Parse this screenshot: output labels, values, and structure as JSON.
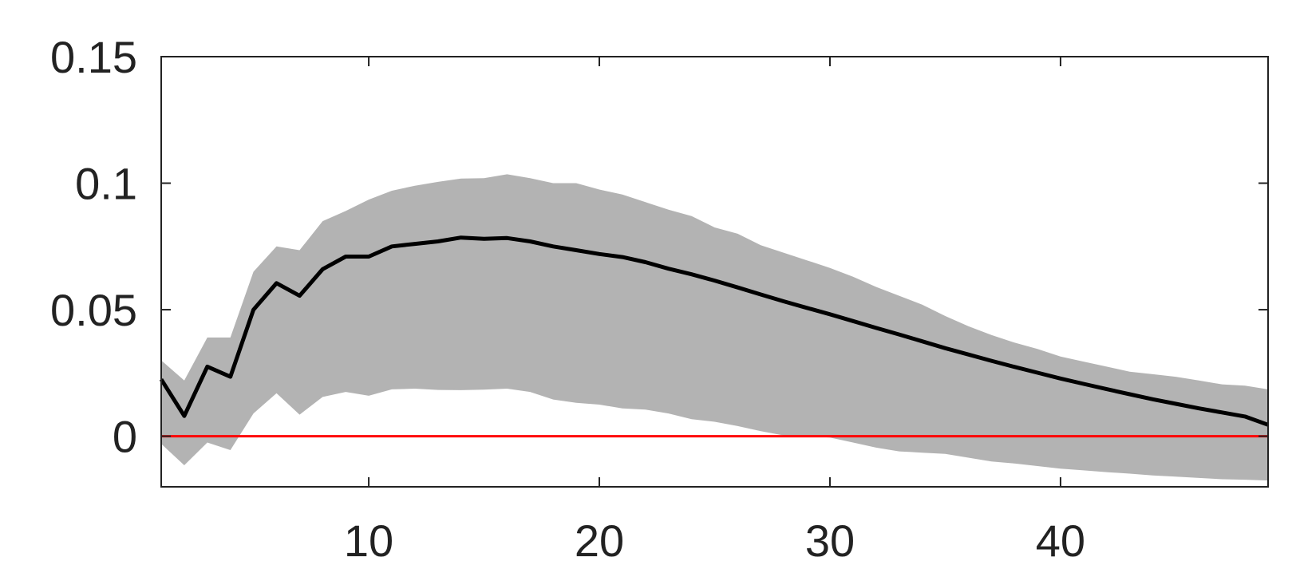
{
  "chart_data": {
    "type": "line",
    "title": "",
    "xlabel": "",
    "ylabel": "",
    "xlim": [
      1,
      49
    ],
    "ylim": [
      -0.02,
      0.15
    ],
    "x_ticks": [
      10,
      20,
      30,
      40
    ],
    "y_ticks": [
      0,
      0.05,
      0.1,
      0.15
    ],
    "x_tick_labels": [
      "10",
      "20",
      "30",
      "40"
    ],
    "y_tick_labels": [
      "0",
      "0.05",
      "0.1",
      "0.15"
    ],
    "grid": false,
    "series": [
      {
        "role": "median",
        "color": "#000000",
        "x": [
          1,
          2,
          3,
          4,
          5,
          6,
          7,
          8,
          9,
          10,
          11,
          12,
          13,
          14,
          15,
          16,
          17,
          18,
          19,
          20,
          21,
          22,
          23,
          24,
          25,
          26,
          27,
          28,
          29,
          30,
          31,
          32,
          33,
          34,
          35,
          36,
          37,
          38,
          39,
          40,
          41,
          42,
          43,
          44,
          45,
          46,
          47,
          48,
          49
        ],
        "y": [
          0.0225,
          0.008,
          0.0275,
          0.0235,
          0.05,
          0.0605,
          0.0555,
          0.066,
          0.071,
          0.071,
          0.075,
          0.076,
          0.077,
          0.0785,
          0.078,
          0.0783,
          0.077,
          0.075,
          0.0735,
          0.072,
          0.0708,
          0.0688,
          0.0662,
          0.064,
          0.0615,
          0.0588,
          0.056,
          0.0533,
          0.0507,
          0.0482,
          0.0455,
          0.0428,
          0.0402,
          0.0375,
          0.0348,
          0.0323,
          0.0298,
          0.0274,
          0.0251,
          0.0228,
          0.0207,
          0.0186,
          0.0166,
          0.0146,
          0.0128,
          0.011,
          0.0094,
          0.0078,
          0.0045
        ]
      }
    ],
    "band": {
      "color": "#b3b3b3",
      "x": [
        1,
        2,
        3,
        4,
        5,
        6,
        7,
        8,
        9,
        10,
        11,
        12,
        13,
        14,
        15,
        16,
        17,
        18,
        19,
        20,
        21,
        22,
        23,
        24,
        25,
        26,
        27,
        28,
        29,
        30,
        31,
        32,
        33,
        34,
        35,
        36,
        37,
        38,
        39,
        40,
        41,
        42,
        43,
        44,
        45,
        46,
        47,
        48,
        49
      ],
      "upper": [
        0.03,
        0.022,
        0.039,
        0.039,
        0.065,
        0.075,
        0.0735,
        0.085,
        0.089,
        0.0935,
        0.097,
        0.099,
        0.1005,
        0.1018,
        0.102,
        0.1035,
        0.102,
        0.1,
        0.1,
        0.0975,
        0.0955,
        0.0925,
        0.0895,
        0.087,
        0.0825,
        0.08,
        0.0755,
        0.0725,
        0.0695,
        0.0665,
        0.063,
        0.059,
        0.0555,
        0.052,
        0.0475,
        0.0435,
        0.04,
        0.037,
        0.0345,
        0.0315,
        0.0295,
        0.0275,
        0.0255,
        0.0245,
        0.0235,
        0.022,
        0.0205,
        0.02,
        0.0185
      ],
      "lower": [
        -0.003,
        -0.0115,
        -0.0025,
        -0.0055,
        0.009,
        0.017,
        0.0085,
        0.0155,
        0.0175,
        0.016,
        0.0185,
        0.0188,
        0.0183,
        0.0182,
        0.0184,
        0.0188,
        0.0175,
        0.0145,
        0.0132,
        0.0125,
        0.011,
        0.0105,
        0.009,
        0.0067,
        0.0057,
        0.004,
        0.002,
        0.0003,
        0.0,
        -0.0005,
        -0.0025,
        -0.0045,
        -0.006,
        -0.0065,
        -0.007,
        -0.0085,
        -0.01,
        -0.0108,
        -0.0118,
        -0.0128,
        -0.0135,
        -0.0142,
        -0.0148,
        -0.0155,
        -0.016,
        -0.0165,
        -0.017,
        -0.0172,
        -0.0175
      ]
    },
    "zero_line": {
      "y": 0,
      "color": "#ff0000"
    }
  }
}
